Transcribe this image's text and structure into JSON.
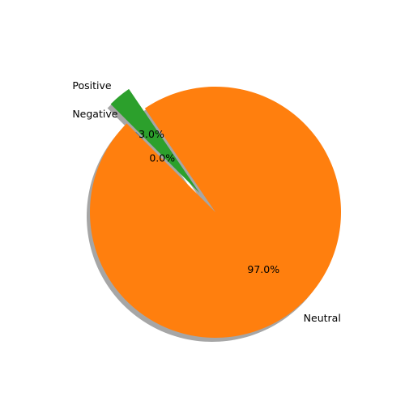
{
  "chart_data": {
    "type": "pie",
    "slices": [
      {
        "label": "Negative",
        "value": 0.0,
        "pct_label": "0.0%",
        "color": "#1f77b4"
      },
      {
        "label": "Neutral",
        "value": 97.0,
        "pct_label": "97.0%",
        "color": "#ff7f0e"
      },
      {
        "label": "Positive",
        "value": 3.0,
        "pct_label": "3.0%",
        "color": "#2ca02c"
      }
    ],
    "shadow": true,
    "exploded": [
      "Positive"
    ]
  }
}
